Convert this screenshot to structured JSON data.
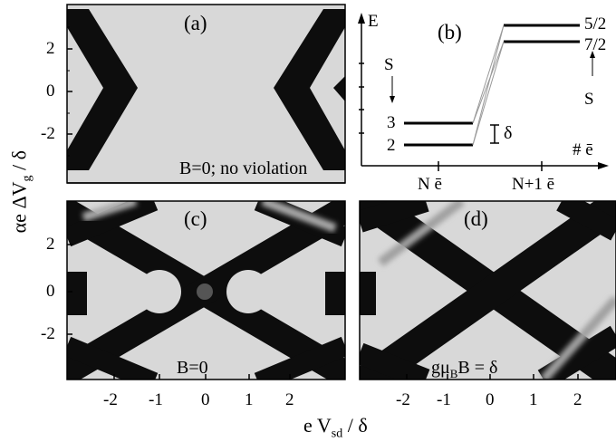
{
  "figure": {
    "panels": [
      {
        "id": "a",
        "tag": "(a)",
        "note": "B=0; no violation"
      },
      {
        "id": "b",
        "tag": "(b)"
      },
      {
        "id": "c",
        "tag": "(c)",
        "note": "B=0"
      },
      {
        "id": "d",
        "tag": "(d)",
        "note_main": "gμ",
        "note_sub": "B",
        "note_tail": "B = δ"
      }
    ],
    "y_axis": {
      "label_main": "αe ΔV",
      "label_sub": "g",
      "label_tail": " / δ",
      "ticks": [
        "2",
        "0",
        "-2"
      ]
    },
    "x_axis": {
      "label_main": "e V",
      "label_sub": "sd",
      "label_tail": " / δ",
      "ticks": [
        "-2",
        "-1",
        "0",
        "1",
        "2"
      ]
    },
    "level_diagram": {
      "energy_label": "E",
      "spin_label_left": "S",
      "spin_label_right": "S",
      "left_levels": [
        "3",
        "2"
      ],
      "right_levels": [
        "5/2",
        "7/2"
      ],
      "gap_label": "δ",
      "electron_axis_label": "# ē",
      "x_marks": [
        "N ē",
        "N+1 ē"
      ]
    },
    "colors": {
      "background": "#d8d8d8",
      "line": "#000000",
      "diamond": "#0d0d0d"
    }
  },
  "chart_data": [
    {
      "type": "heatmap",
      "panel": "(a)",
      "title": "",
      "annotation": "B=0; no violation",
      "xlim": [
        -3,
        3
      ],
      "ylim": [
        -3.8,
        3.8
      ],
      "yticks": [
        2,
        0,
        -2
      ]
    },
    {
      "type": "diagram",
      "panel": "(b)",
      "left_levels": [
        {
          "label": "3",
          "S": 3
        },
        {
          "label": "2",
          "S": 2
        }
      ],
      "right_levels": [
        {
          "label": "5/2",
          "S": 2.5
        },
        {
          "label": "7/2",
          "S": 3.5
        }
      ],
      "x_marks": [
        "N ē",
        "N+1 ē"
      ]
    },
    {
      "type": "heatmap",
      "panel": "(c)",
      "annotation": "B=0",
      "xlim": [
        -3,
        3
      ],
      "ylim": [
        -3.8,
        3.8
      ],
      "xticks": [
        -2,
        -1,
        0,
        1,
        2
      ],
      "yticks": [
        2,
        0,
        -2
      ]
    },
    {
      "type": "heatmap",
      "panel": "(d)",
      "annotation": "gμB B = δ",
      "xlim": [
        -3,
        3
      ],
      "ylim": [
        -3.8,
        3.8
      ],
      "xticks": [
        -2,
        -1,
        0,
        1,
        2
      ]
    }
  ]
}
